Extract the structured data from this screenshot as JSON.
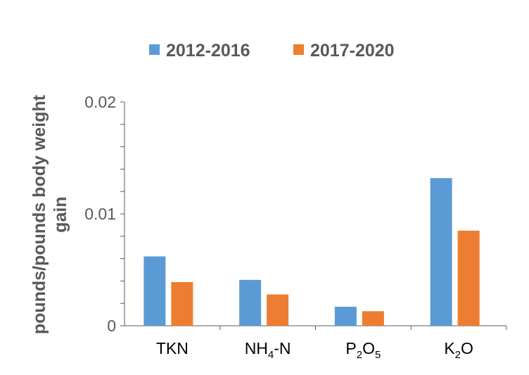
{
  "chart_data": {
    "type": "bar",
    "categories": [
      "TKN",
      "NH4-N",
      "P2O5",
      "K2O"
    ],
    "category_display": [
      [
        {
          "t": "TKN"
        }
      ],
      [
        {
          "t": "NH"
        },
        {
          "t": "4",
          "sub": true
        },
        {
          "t": "-N"
        }
      ],
      [
        {
          "t": "P"
        },
        {
          "t": "2",
          "sub": true
        },
        {
          "t": "O"
        },
        {
          "t": "5",
          "sub": true
        }
      ],
      [
        {
          "t": "K"
        },
        {
          "t": "2",
          "sub": true
        },
        {
          "t": "O"
        }
      ]
    ],
    "series": [
      {
        "name": "2012-2016",
        "color": "#5b9bd5",
        "values": [
          0.0062,
          0.0041,
          0.0017,
          0.0132
        ]
      },
      {
        "name": "2017-2020",
        "color": "#ed7d31",
        "values": [
          0.0039,
          0.0028,
          0.0013,
          0.0085
        ]
      }
    ],
    "ylabel_lines": [
      "pounds/pounds body weight",
      "gain"
    ],
    "ylim": [
      0,
      0.02
    ],
    "yticks": [
      "0",
      "0.01",
      "0.02"
    ],
    "ytick_values": [
      0,
      0.01,
      0.02
    ],
    "minor_tick_step": 0.002,
    "grid": false,
    "legend_position": "top"
  }
}
